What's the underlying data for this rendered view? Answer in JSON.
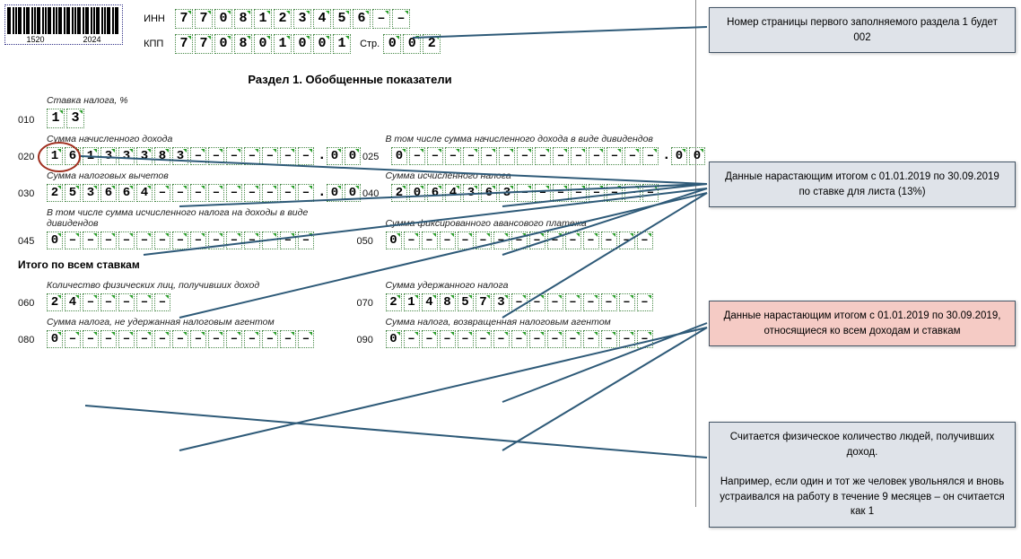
{
  "barcode": {
    "n1": "1520",
    "n2": "2024"
  },
  "hdr": {
    "innLabel": "ИНН",
    "inn": [
      "7",
      "7",
      "0",
      "8",
      "1",
      "2",
      "3",
      "4",
      "5",
      "6",
      "–",
      "–"
    ],
    "kppLabel": "КПП",
    "kpp": [
      "7",
      "7",
      "0",
      "8",
      "0",
      "1",
      "0",
      "0",
      "1"
    ],
    "pageLabel": "Стр.",
    "page": [
      "0",
      "0",
      "2"
    ]
  },
  "sectionTitle": "Раздел 1. Обобщенные показатели",
  "labels": {
    "l010": "Ставка налога, %",
    "l020": "Сумма начисленного дохода",
    "l025": "В том числе сумма начисленного дохода в виде дивидендов",
    "l030": "Сумма налоговых вычетов",
    "l040": "Сумма исчисленного налога",
    "l045": "В том числе сумма исчисленного налога на доходы в виде дивидендов",
    "l050": "Сумма фиксированного авансового платежа",
    "totals": "Итого по всем ставкам",
    "l060": "Количество физических лиц, получивших доход",
    "l070": "Сумма удержанного налога",
    "l080": "Сумма налога, не удержанная налоговым агентом",
    "l090": "Сумма налога, возвращенная налоговым агентом"
  },
  "codes": {
    "c010": "010",
    "c020": "020",
    "c025": "025",
    "c030": "030",
    "c040": "040",
    "c045": "045",
    "c050": "050",
    "c060": "060",
    "c070": "070",
    "c080": "080",
    "c090": "090"
  },
  "vals": {
    "v010": [
      "1",
      "3"
    ],
    "v020": [
      "1",
      "6",
      "1",
      "3",
      "3",
      "3",
      "8",
      "3",
      "–",
      "–",
      "–",
      "–",
      "–",
      "–",
      "–",
      ".",
      "0",
      "0"
    ],
    "v025": [
      "0",
      "–",
      "–",
      "–",
      "–",
      "–",
      "–",
      "–",
      "–",
      "–",
      "–",
      "–",
      "–",
      "–",
      "–",
      ".",
      "0",
      "0"
    ],
    "v030": [
      "2",
      "5",
      "3",
      "6",
      "6",
      "4",
      "–",
      "–",
      "–",
      "–",
      "–",
      "–",
      "–",
      "–",
      "–",
      ".",
      "0",
      "0"
    ],
    "v040": [
      "2",
      "0",
      "6",
      "4",
      "3",
      "6",
      "3",
      "–",
      "–",
      "–",
      "–",
      "–",
      "–",
      "–",
      "–"
    ],
    "v045": [
      "0",
      "–",
      "–",
      "–",
      "–",
      "–",
      "–",
      "–",
      "–",
      "–",
      "–",
      "–",
      "–",
      "–",
      "–"
    ],
    "v050": [
      "0",
      "–",
      "–",
      "–",
      "–",
      "–",
      "–",
      "–",
      "–",
      "–",
      "–",
      "–",
      "–",
      "–",
      "–"
    ],
    "v060": [
      "2",
      "4",
      "–",
      "–",
      "–",
      "–",
      "–"
    ],
    "v070": [
      "2",
      "1",
      "4",
      "8",
      "5",
      "7",
      "3",
      "–",
      "–",
      "–",
      "–",
      "–",
      "–",
      "–",
      "–"
    ],
    "v080": [
      "0",
      "–",
      "–",
      "–",
      "–",
      "–",
      "–",
      "–",
      "–",
      "–",
      "–",
      "–",
      "–",
      "–",
      "–"
    ],
    "v090": [
      "0",
      "–",
      "–",
      "–",
      "–",
      "–",
      "–",
      "–",
      "–",
      "–",
      "–",
      "–",
      "–",
      "–",
      "–"
    ]
  },
  "callouts": {
    "a": "Номер страницы первого заполняемого раздела 1 будет 002",
    "b": "Данные нарастающим итогом с 01.01.2019 по 30.09.2019 по ставке для листа (13%)",
    "c": "Данные нарастающим итогом с 01.01.2019 по 30.09.2019, относящиеся ко всем доходам и ставкам",
    "d": "Считается физическое количество людей, получивших доход.\n\nНапример, если один и тот же человек увольнялся и вновь устраивался на работу в течение 9 месяцев – он считается как 1"
  },
  "colors": {
    "line": "#2e5a78",
    "redbox": "#f5cbc5",
    "graybox": "#dfe3e9",
    "boxborder": "#456"
  }
}
